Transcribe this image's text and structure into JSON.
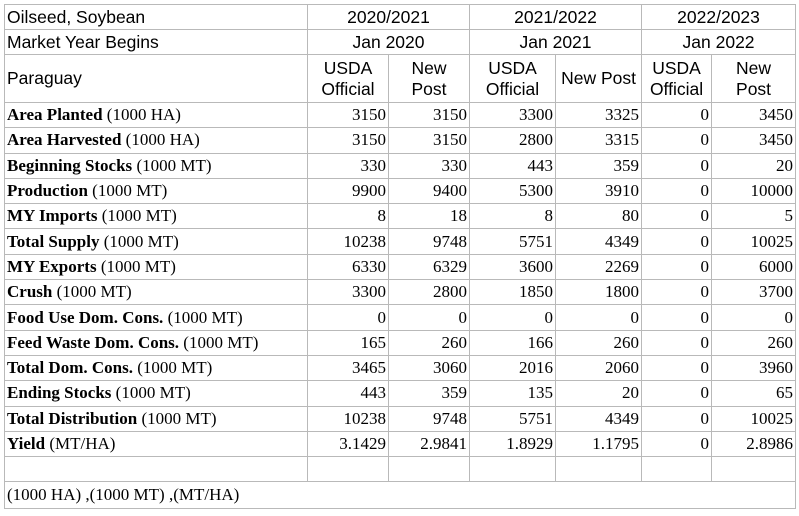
{
  "header": {
    "commodity": "Oilseed, Soybean",
    "market_year_label": "Market Year Begins",
    "country": "Paraguay",
    "years": [
      {
        "label": "2020/2021",
        "begins": "Jan 2020"
      },
      {
        "label": "2021/2022",
        "begins": "Jan 2021"
      },
      {
        "label": "2022/2023",
        "begins": "Jan 2022"
      }
    ],
    "col_usda_1": "USDA",
    "col_usda_2": "Official",
    "col_new_1": "New",
    "col_new_2": "Post",
    "col_newpost": "New Post"
  },
  "rows": [
    {
      "label": "Area Planted",
      "unit": " (1000 HA)",
      "values": [
        "3150",
        "3150",
        "3300",
        "3325",
        "0",
        "3450"
      ]
    },
    {
      "label": "Area Harvested",
      "unit": " (1000 HA)",
      "values": [
        "3150",
        "3150",
        "2800",
        "3315",
        "0",
        "3450"
      ]
    },
    {
      "label": "Beginning Stocks",
      "unit": " (1000 MT)",
      "values": [
        "330",
        "330",
        "443",
        "359",
        "0",
        "20"
      ]
    },
    {
      "label": "Production",
      "unit": " (1000 MT)",
      "values": [
        "9900",
        "9400",
        "5300",
        "3910",
        "0",
        "10000"
      ]
    },
    {
      "label": "MY Imports",
      "unit": " (1000 MT)",
      "values": [
        "8",
        "18",
        "8",
        "80",
        "0",
        "5"
      ]
    },
    {
      "label": "Total Supply",
      "unit": " (1000 MT)",
      "values": [
        "10238",
        "9748",
        "5751",
        "4349",
        "0",
        "10025"
      ]
    },
    {
      "label": "MY Exports",
      "unit": " (1000 MT)",
      "values": [
        "6330",
        "6329",
        "3600",
        "2269",
        "0",
        "6000"
      ]
    },
    {
      "label": "Crush",
      "unit": " (1000 MT)",
      "values": [
        "3300",
        "2800",
        "1850",
        "1800",
        "0",
        "3700"
      ]
    },
    {
      "label": "Food Use Dom. Cons.",
      "unit": " (1000 MT)",
      "values": [
        "0",
        "0",
        "0",
        "0",
        "0",
        "0"
      ]
    },
    {
      "label": "Feed Waste Dom. Cons.",
      "unit": " (1000 MT)",
      "values": [
        "165",
        "260",
        "166",
        "260",
        "0",
        "260"
      ]
    },
    {
      "label": "Total Dom. Cons.",
      "unit": " (1000 MT)",
      "values": [
        "3465",
        "3060",
        "2016",
        "2060",
        "0",
        "3960"
      ]
    },
    {
      "label": "Ending Stocks",
      "unit": " (1000 MT)",
      "values": [
        "443",
        "359",
        "135",
        "20",
        "0",
        "65"
      ]
    },
    {
      "label": "Total Distribution",
      "unit": " (1000 MT)",
      "values": [
        "10238",
        "9748",
        "5751",
        "4349",
        "0",
        "10025"
      ]
    },
    {
      "label": "Yield",
      "unit": " (MT/HA)",
      "values": [
        "3.1429",
        "2.9841",
        "1.8929",
        "1.1795",
        "0",
        "2.8986"
      ]
    }
  ],
  "footnote": "(1000 HA) ,(1000 MT) ,(MT/HA)"
}
